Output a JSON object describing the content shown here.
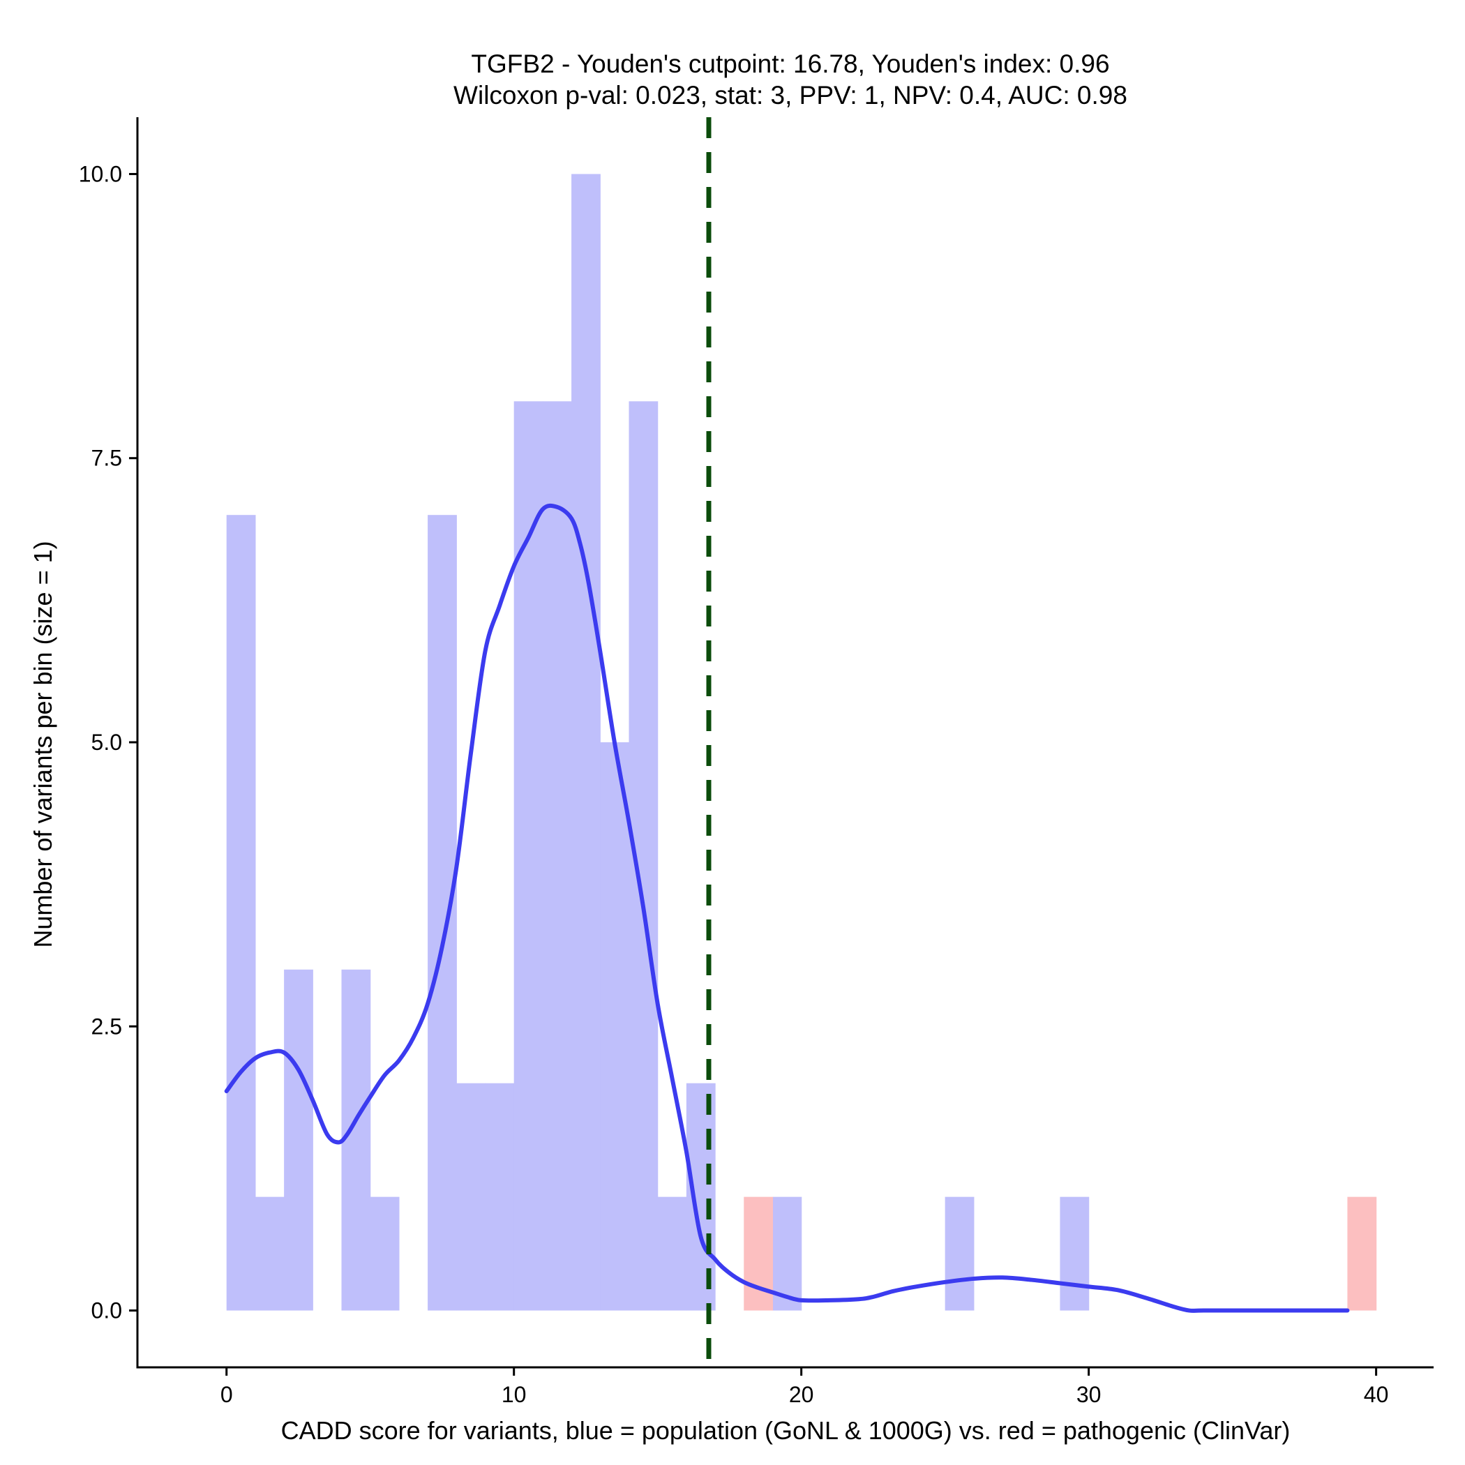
{
  "chart_data": {
    "type": "bar",
    "title": "TGFB2 - Youden's cutpoint: 16.78, Youden's index: 0.96",
    "subtitle": "Wilcoxon p-val: 0.023, stat: 3, PPV: 1, NPV: 0.4, AUC: 0.98",
    "xlabel": "CADD score for variants, blue = population (GoNL & 1000G) vs. red = pathogenic (ClinVar)",
    "ylabel": "Number of variants per bin (size = 1)",
    "xlim": [
      -3.1,
      42
    ],
    "ylim": [
      -0.5,
      10.5
    ],
    "x_ticks": [
      0,
      10,
      20,
      30,
      40
    ],
    "x_tick_labels": [
      "0",
      "10",
      "20",
      "30",
      "40"
    ],
    "y_ticks": [
      0,
      2.5,
      5,
      7.5,
      10
    ],
    "y_tick_labels": [
      "0.0",
      "2.5",
      "5.0",
      "7.5",
      "10.0"
    ],
    "grid": false,
    "bin_width": 1,
    "colors": {
      "population_bar": "#bfbffb",
      "pathogenic_bar": "#fcbfc0",
      "density_line": "#3b3bef",
      "cutpoint_line": "#0b4c0b"
    },
    "series": [
      {
        "name": "population (GoNL & 1000G)",
        "bins": [
          {
            "start": 0,
            "count": 7
          },
          {
            "start": 1,
            "count": 1
          },
          {
            "start": 2,
            "count": 3
          },
          {
            "start": 4,
            "count": 3
          },
          {
            "start": 5,
            "count": 1
          },
          {
            "start": 7,
            "count": 7
          },
          {
            "start": 8,
            "count": 2
          },
          {
            "start": 9,
            "count": 2
          },
          {
            "start": 10,
            "count": 8
          },
          {
            "start": 11,
            "count": 8
          },
          {
            "start": 12,
            "count": 10
          },
          {
            "start": 13,
            "count": 5
          },
          {
            "start": 14,
            "count": 8
          },
          {
            "start": 15,
            "count": 1
          },
          {
            "start": 16,
            "count": 2
          },
          {
            "start": 19,
            "count": 1
          },
          {
            "start": 25,
            "count": 1
          },
          {
            "start": 29,
            "count": 1
          }
        ]
      },
      {
        "name": "pathogenic (ClinVar)",
        "bins": [
          {
            "start": 18,
            "count": 1
          },
          {
            "start": 39,
            "count": 1
          }
        ]
      }
    ],
    "density_curve": {
      "x": [
        0,
        0.5,
        1,
        1.5,
        2,
        2.5,
        3,
        3.5,
        3.9,
        4.2,
        4.6,
        5,
        5.5,
        6,
        6.5,
        7,
        7.5,
        8,
        8.5,
        9,
        9.5,
        10,
        10.5,
        11,
        11.5,
        12,
        12.3,
        12.6,
        13,
        13.5,
        14,
        14.5,
        15,
        15.5,
        16,
        16.5,
        17,
        17.5,
        18,
        18.5,
        19,
        19.5,
        20,
        21,
        22,
        22.5,
        23.2,
        24,
        25,
        26,
        27,
        28,
        29,
        30,
        31,
        32,
        33,
        33.5,
        34,
        36,
        38,
        39
      ],
      "y": [
        1.93,
        2.1,
        2.22,
        2.27,
        2.27,
        2.12,
        1.85,
        1.55,
        1.48,
        1.55,
        1.72,
        1.88,
        2.07,
        2.2,
        2.4,
        2.7,
        3.2,
        3.9,
        4.9,
        5.8,
        6.2,
        6.55,
        6.8,
        7.05,
        7.07,
        6.97,
        6.75,
        6.4,
        5.8,
        5.0,
        4.3,
        3.55,
        2.7,
        2.05,
        1.4,
        0.65,
        0.45,
        0.33,
        0.25,
        0.2,
        0.16,
        0.12,
        0.09,
        0.09,
        0.1,
        0.12,
        0.17,
        0.21,
        0.25,
        0.28,
        0.29,
        0.27,
        0.24,
        0.21,
        0.18,
        0.11,
        0.03,
        0,
        0,
        0,
        0,
        0
      ]
    },
    "cutpoint": 16.78
  }
}
